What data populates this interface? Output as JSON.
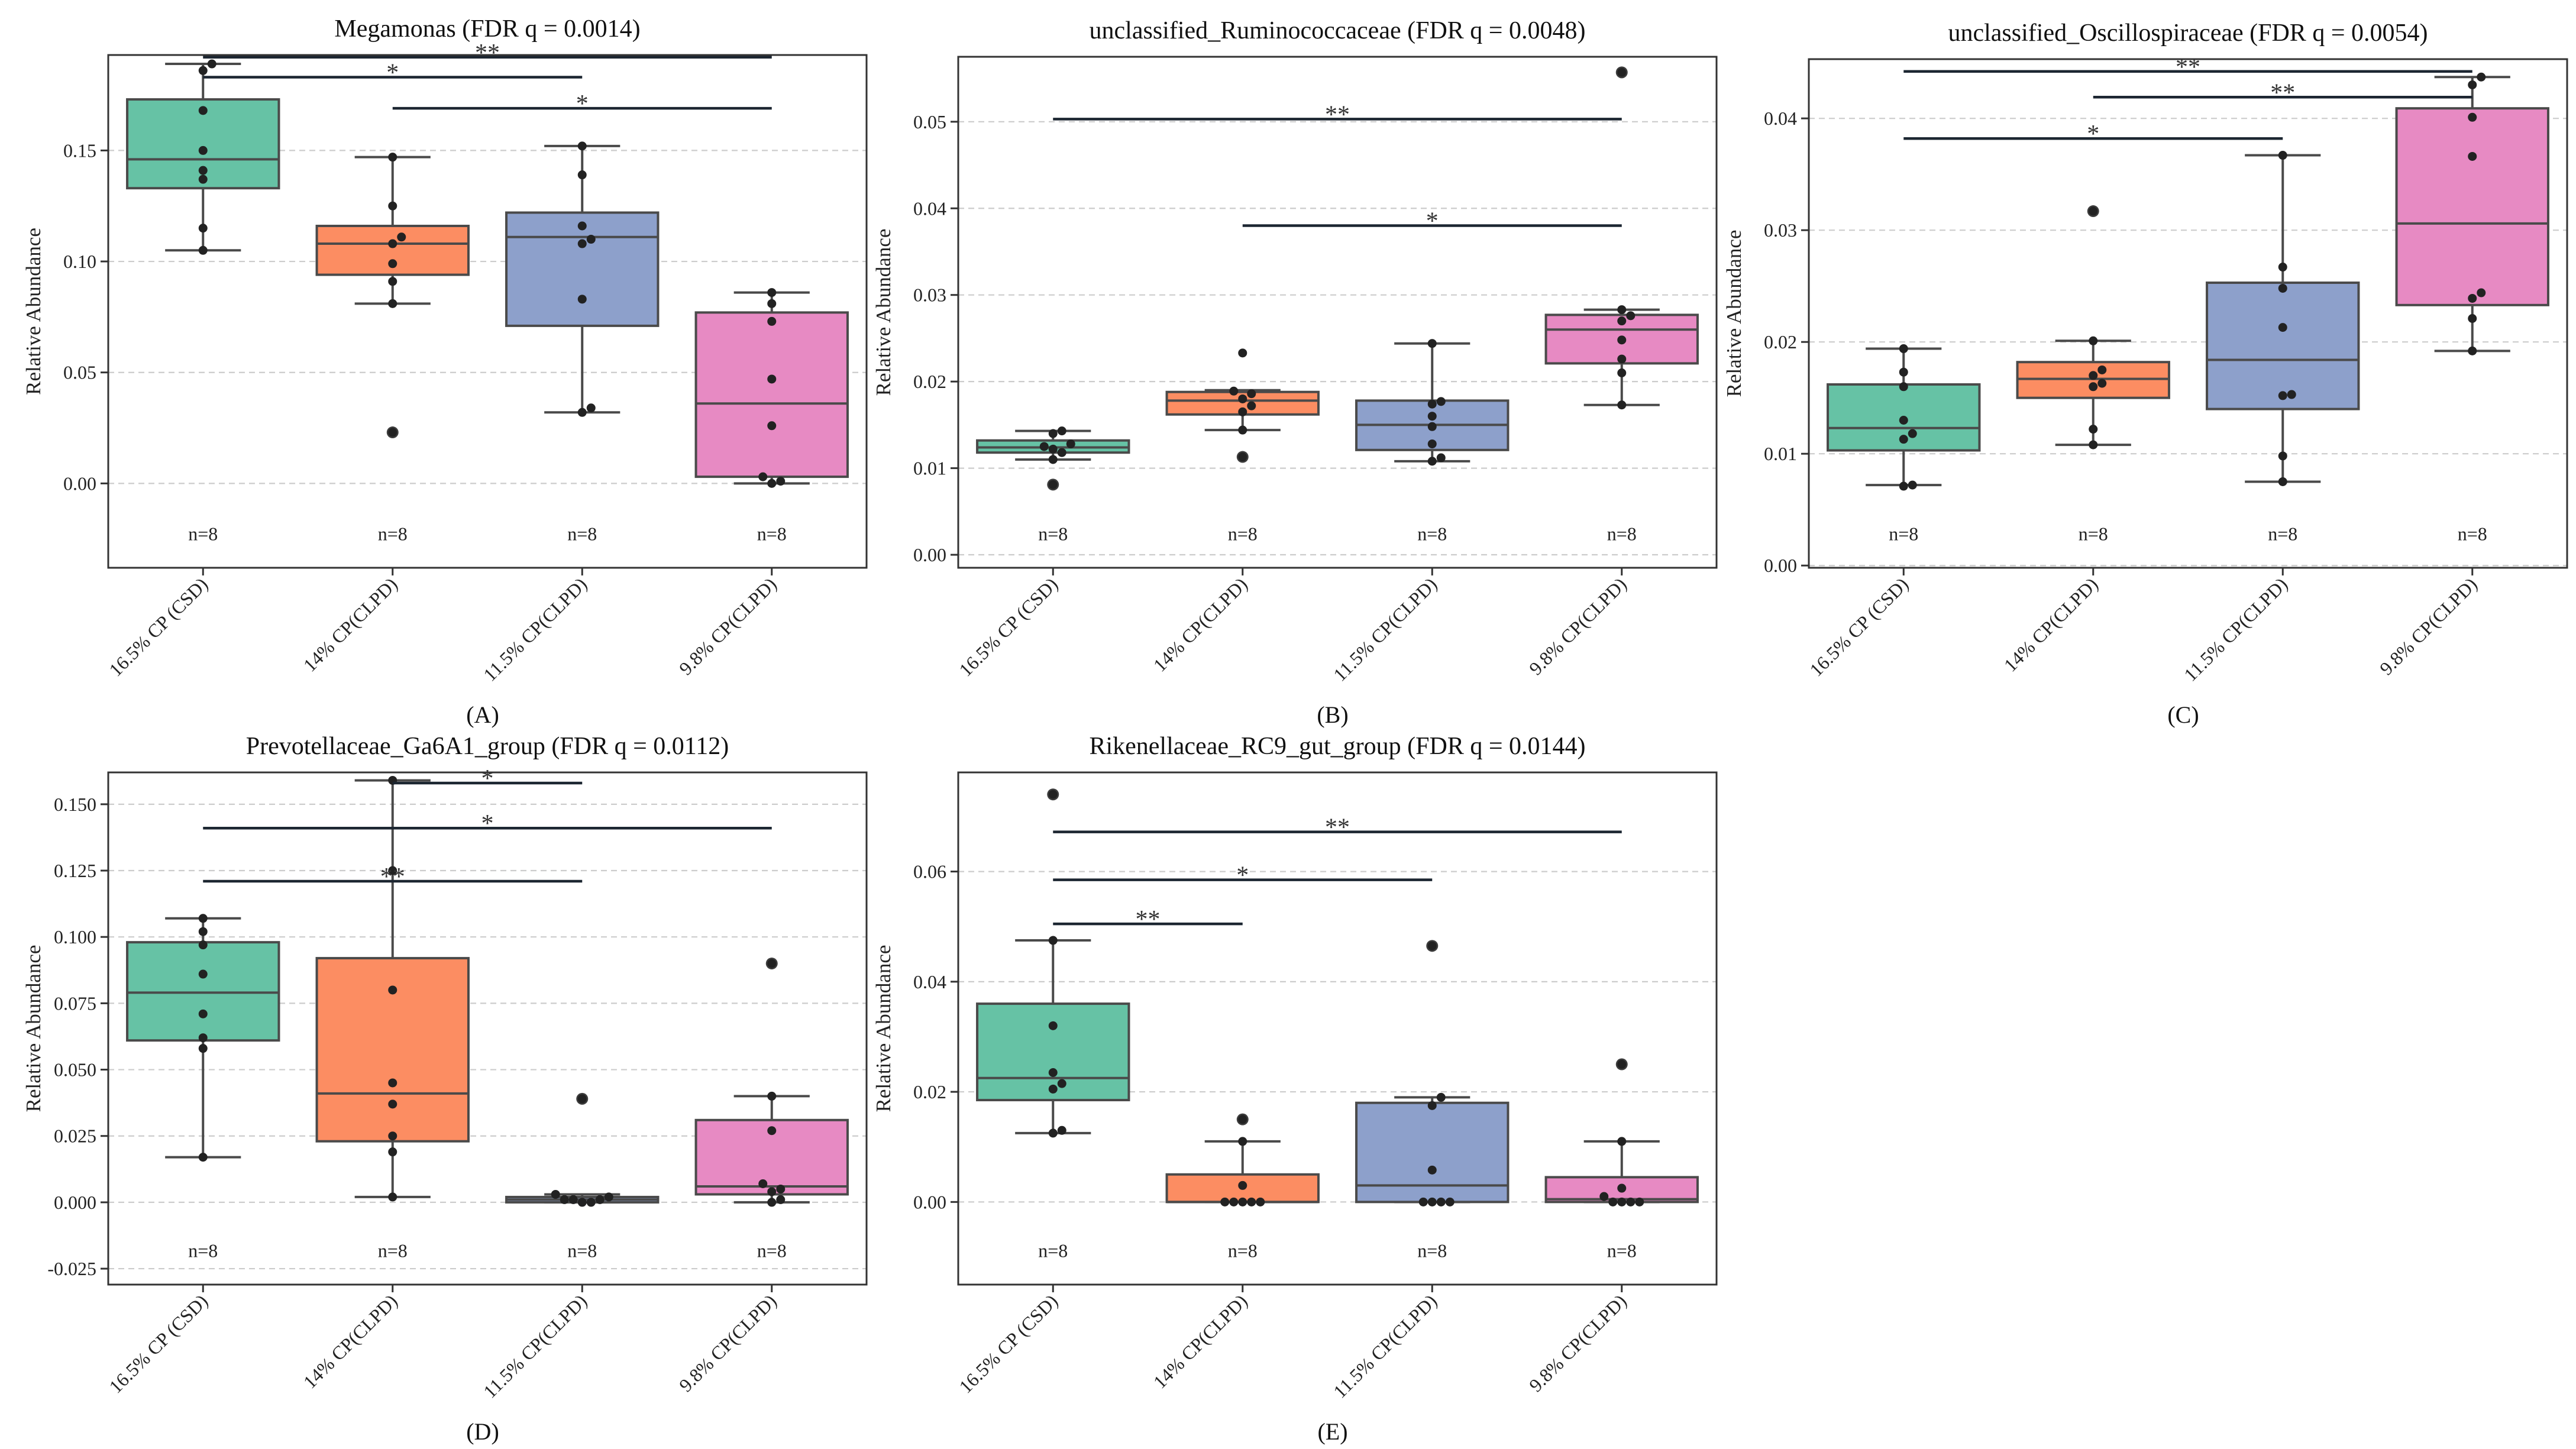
{
  "figure": {
    "shared": {
      "categories": [
        "16.5% CP (CSD)",
        "14% CP(CLPD)",
        "11.5% CP(CLPD)",
        "9.8% CP(CLPD)"
      ],
      "ylabel": "Relative Abundance",
      "count_label": "n=8",
      "colors": {
        "box": [
          "#66c2a5",
          "#fc8d62",
          "#8da0cb",
          "#e78ac3"
        ],
        "line": "#4a4a4a",
        "point": "#222222",
        "grid": "#cccccc",
        "bracket": "#1c2631"
      }
    },
    "chart_data": [
      {
        "type": "box",
        "panel_label": "(A)",
        "title": "Megamonas (FDR q = 0.0014)",
        "ylim": [
          -0.038,
          0.193
        ],
        "yticks": [
          0.0,
          0.05,
          0.1,
          0.15
        ],
        "ytick_labels": [
          "0.00",
          "0.05",
          "0.10",
          "0.15"
        ],
        "boxes": [
          {
            "q1": 0.133,
            "median": 0.146,
            "q3": 0.173,
            "whisker_low": 0.105,
            "whisker_high": 0.189,
            "fliers": [],
            "points": [
              0.189,
              0.186,
              0.168,
              0.15,
              0.141,
              0.137,
              0.115,
              0.105
            ]
          },
          {
            "q1": 0.094,
            "median": 0.108,
            "q3": 0.116,
            "whisker_low": 0.081,
            "whisker_high": 0.147,
            "fliers": [
              0.023
            ],
            "points": [
              0.147,
              0.125,
              0.111,
              0.108,
              0.099,
              0.091,
              0.081,
              0.023
            ]
          },
          {
            "q1": 0.071,
            "median": 0.111,
            "q3": 0.122,
            "whisker_low": 0.032,
            "whisker_high": 0.152,
            "fliers": [],
            "points": [
              0.152,
              0.139,
              0.116,
              0.11,
              0.108,
              0.083,
              0.034,
              0.032
            ]
          },
          {
            "q1": 0.003,
            "median": 0.036,
            "q3": 0.077,
            "whisker_low": 0.0,
            "whisker_high": 0.086,
            "fliers": [],
            "points": [
              0.086,
              0.081,
              0.073,
              0.047,
              0.026,
              0.003,
              0.001,
              0.0
            ]
          }
        ],
        "brackets": [
          {
            "from": 0,
            "to": 3,
            "y": 0.192,
            "label": "**"
          },
          {
            "from": 0,
            "to": 2,
            "y": 0.183,
            "label": "*"
          },
          {
            "from": 1,
            "to": 3,
            "y": 0.169,
            "label": "*"
          }
        ]
      },
      {
        "type": "box",
        "panel_label": "(B)",
        "title": "unclassified_Ruminococcaceae (FDR q = 0.0048)",
        "ylim": [
          -0.0015,
          0.0575
        ],
        "yticks": [
          0.0,
          0.01,
          0.02,
          0.03,
          0.04,
          0.05
        ],
        "ytick_labels": [
          "0.00",
          "0.01",
          "0.02",
          "0.03",
          "0.04",
          "0.05"
        ],
        "boxes": [
          {
            "q1": 0.0118,
            "median": 0.0124,
            "q3": 0.0132,
            "whisker_low": 0.011,
            "whisker_high": 0.0143,
            "fliers": [
              0.0081
            ],
            "points": [
              0.0143,
              0.014,
              0.0128,
              0.0125,
              0.0122,
              0.0118,
              0.011,
              0.0081
            ]
          },
          {
            "q1": 0.0162,
            "median": 0.0178,
            "q3": 0.0188,
            "whisker_low": 0.0144,
            "whisker_high": 0.019,
            "fliers": [
              0.0113
            ],
            "points": [
              0.0233,
              0.0189,
              0.0186,
              0.018,
              0.0172,
              0.0165,
              0.0144,
              0.0113
            ]
          },
          {
            "q1": 0.0121,
            "median": 0.015,
            "q3": 0.0178,
            "whisker_low": 0.0108,
            "whisker_high": 0.0244,
            "fliers": [],
            "points": [
              0.0244,
              0.0177,
              0.0174,
              0.016,
              0.0148,
              0.0128,
              0.0112,
              0.0108
            ]
          },
          {
            "q1": 0.0221,
            "median": 0.026,
            "q3": 0.0277,
            "whisker_low": 0.0173,
            "whisker_high": 0.0283,
            "fliers": [
              0.0557
            ],
            "points": [
              0.0557,
              0.0283,
              0.0276,
              0.027,
              0.0248,
              0.0226,
              0.021,
              0.0173
            ]
          }
        ],
        "brackets": [
          {
            "from": 0,
            "to": 3,
            "y": 0.0503,
            "label": "**"
          },
          {
            "from": 1,
            "to": 3,
            "y": 0.038,
            "label": "*"
          }
        ]
      },
      {
        "type": "box",
        "panel_label": "(C)",
        "title": "unclassified_Oscillospiraceae (FDR q = 0.0054)",
        "ylim": [
          -0.0002,
          0.0453
        ],
        "yticks": [
          0.0,
          0.01,
          0.02,
          0.03,
          0.04
        ],
        "ytick_labels": [
          "0.00",
          "0.01",
          "0.02",
          "0.03",
          "0.04"
        ],
        "boxes": [
          {
            "q1": 0.0103,
            "median": 0.0123,
            "q3": 0.0162,
            "whisker_low": 0.0072,
            "whisker_high": 0.0194,
            "fliers": [],
            "points": [
              0.0194,
              0.0173,
              0.016,
              0.013,
              0.0118,
              0.0113,
              0.0072,
              0.0071
            ]
          },
          {
            "q1": 0.015,
            "median": 0.0167,
            "q3": 0.0182,
            "whisker_low": 0.0108,
            "whisker_high": 0.0201,
            "fliers": [
              0.0317
            ],
            "points": [
              0.0317,
              0.0201,
              0.0175,
              0.017,
              0.0163,
              0.016,
              0.0122,
              0.0108
            ]
          },
          {
            "q1": 0.014,
            "median": 0.0184,
            "q3": 0.0253,
            "whisker_low": 0.0075,
            "whisker_high": 0.0367,
            "fliers": [],
            "points": [
              0.0367,
              0.0267,
              0.0248,
              0.0213,
              0.0153,
              0.0152,
              0.0098,
              0.0075
            ]
          },
          {
            "q1": 0.0233,
            "median": 0.0306,
            "q3": 0.0409,
            "whisker_low": 0.0192,
            "whisker_high": 0.0437,
            "fliers": [],
            "points": [
              0.0437,
              0.043,
              0.0401,
              0.0366,
              0.0244,
              0.0239,
              0.0221,
              0.0192
            ]
          }
        ],
        "brackets": [
          {
            "from": 0,
            "to": 3,
            "y": 0.0442,
            "label": "**"
          },
          {
            "from": 1,
            "to": 3,
            "y": 0.0419,
            "label": "**"
          },
          {
            "from": 0,
            "to": 2,
            "y": 0.0382,
            "label": "*"
          }
        ]
      },
      {
        "type": "box",
        "panel_label": "(D)",
        "title": "Prevotellaceae_Ga6A1_group (FDR q = 0.0112)",
        "ylim": [
          -0.031,
          0.162
        ],
        "yticks": [
          -0.025,
          0.0,
          0.025,
          0.05,
          0.075,
          0.1,
          0.125,
          0.15
        ],
        "ytick_labels": [
          "-0.025",
          "0.000",
          "0.025",
          "0.050",
          "0.075",
          "0.100",
          "0.125",
          "0.150"
        ],
        "boxes": [
          {
            "q1": 0.061,
            "median": 0.079,
            "q3": 0.098,
            "whisker_low": 0.017,
            "whisker_high": 0.107,
            "fliers": [],
            "points": [
              0.107,
              0.102,
              0.097,
              0.086,
              0.071,
              0.062,
              0.058,
              0.017
            ]
          },
          {
            "q1": 0.023,
            "median": 0.041,
            "q3": 0.092,
            "whisker_low": 0.002,
            "whisker_high": 0.159,
            "fliers": [],
            "points": [
              0.159,
              0.125,
              0.08,
              0.045,
              0.037,
              0.025,
              0.019,
              0.002
            ]
          },
          {
            "q1": 0.0,
            "median": 0.001,
            "q3": 0.002,
            "whisker_low": 0.0,
            "whisker_high": 0.003,
            "fliers": [
              0.039
            ],
            "points": [
              0.039,
              0.003,
              0.002,
              0.001,
              0.001,
              0.001,
              0.0,
              0.0
            ]
          },
          {
            "q1": 0.003,
            "median": 0.006,
            "q3": 0.031,
            "whisker_low": 0.0,
            "whisker_high": 0.04,
            "fliers": [
              0.09
            ],
            "points": [
              0.09,
              0.04,
              0.027,
              0.007,
              0.005,
              0.004,
              0.001,
              0.0
            ]
          }
        ],
        "brackets": [
          {
            "from": 1,
            "to": 2,
            "y": 0.158,
            "label": "*"
          },
          {
            "from": 0,
            "to": 3,
            "y": 0.141,
            "label": "*"
          },
          {
            "from": 0,
            "to": 2,
            "y": 0.121,
            "label": "**"
          }
        ]
      },
      {
        "type": "box",
        "panel_label": "(E)",
        "title": "Rikenellaceae_RC9_gut_group (FDR q = 0.0144)",
        "ylim": [
          -0.015,
          0.078
        ],
        "yticks": [
          0.0,
          0.02,
          0.04,
          0.06
        ],
        "ytick_labels": [
          "0.00",
          "0.02",
          "0.04",
          "0.06"
        ],
        "boxes": [
          {
            "q1": 0.0185,
            "median": 0.0225,
            "q3": 0.036,
            "whisker_low": 0.0125,
            "whisker_high": 0.0475,
            "fliers": [
              0.074
            ],
            "points": [
              0.074,
              0.0475,
              0.032,
              0.0235,
              0.0215,
              0.0205,
              0.013,
              0.0125
            ]
          },
          {
            "q1": 0.0,
            "median": 0.0,
            "q3": 0.005,
            "whisker_low": 0.0,
            "whisker_high": 0.011,
            "fliers": [
              0.015
            ],
            "points": [
              0.015,
              0.011,
              0.003,
              0.0,
              0.0,
              0.0,
              0.0,
              0.0
            ]
          },
          {
            "q1": 0.0,
            "median": 0.003,
            "q3": 0.018,
            "whisker_low": 0.0,
            "whisker_high": 0.019,
            "fliers": [
              0.0465
            ],
            "points": [
              0.0465,
              0.019,
              0.0175,
              0.0058,
              0.0,
              0.0,
              0.0,
              0.0
            ]
          },
          {
            "q1": 0.0,
            "median": 0.0005,
            "q3": 0.0045,
            "whisker_low": 0.0,
            "whisker_high": 0.011,
            "fliers": [
              0.025
            ],
            "points": [
              0.025,
              0.011,
              0.0025,
              0.001,
              0.0,
              0.0,
              0.0,
              0.0
            ]
          }
        ],
        "brackets": [
          {
            "from": 0,
            "to": 3,
            "y": 0.0672,
            "label": "**"
          },
          {
            "from": 0,
            "to": 2,
            "y": 0.0585,
            "label": "*"
          },
          {
            "from": 0,
            "to": 1,
            "y": 0.0505,
            "label": "**"
          }
        ]
      }
    ]
  }
}
